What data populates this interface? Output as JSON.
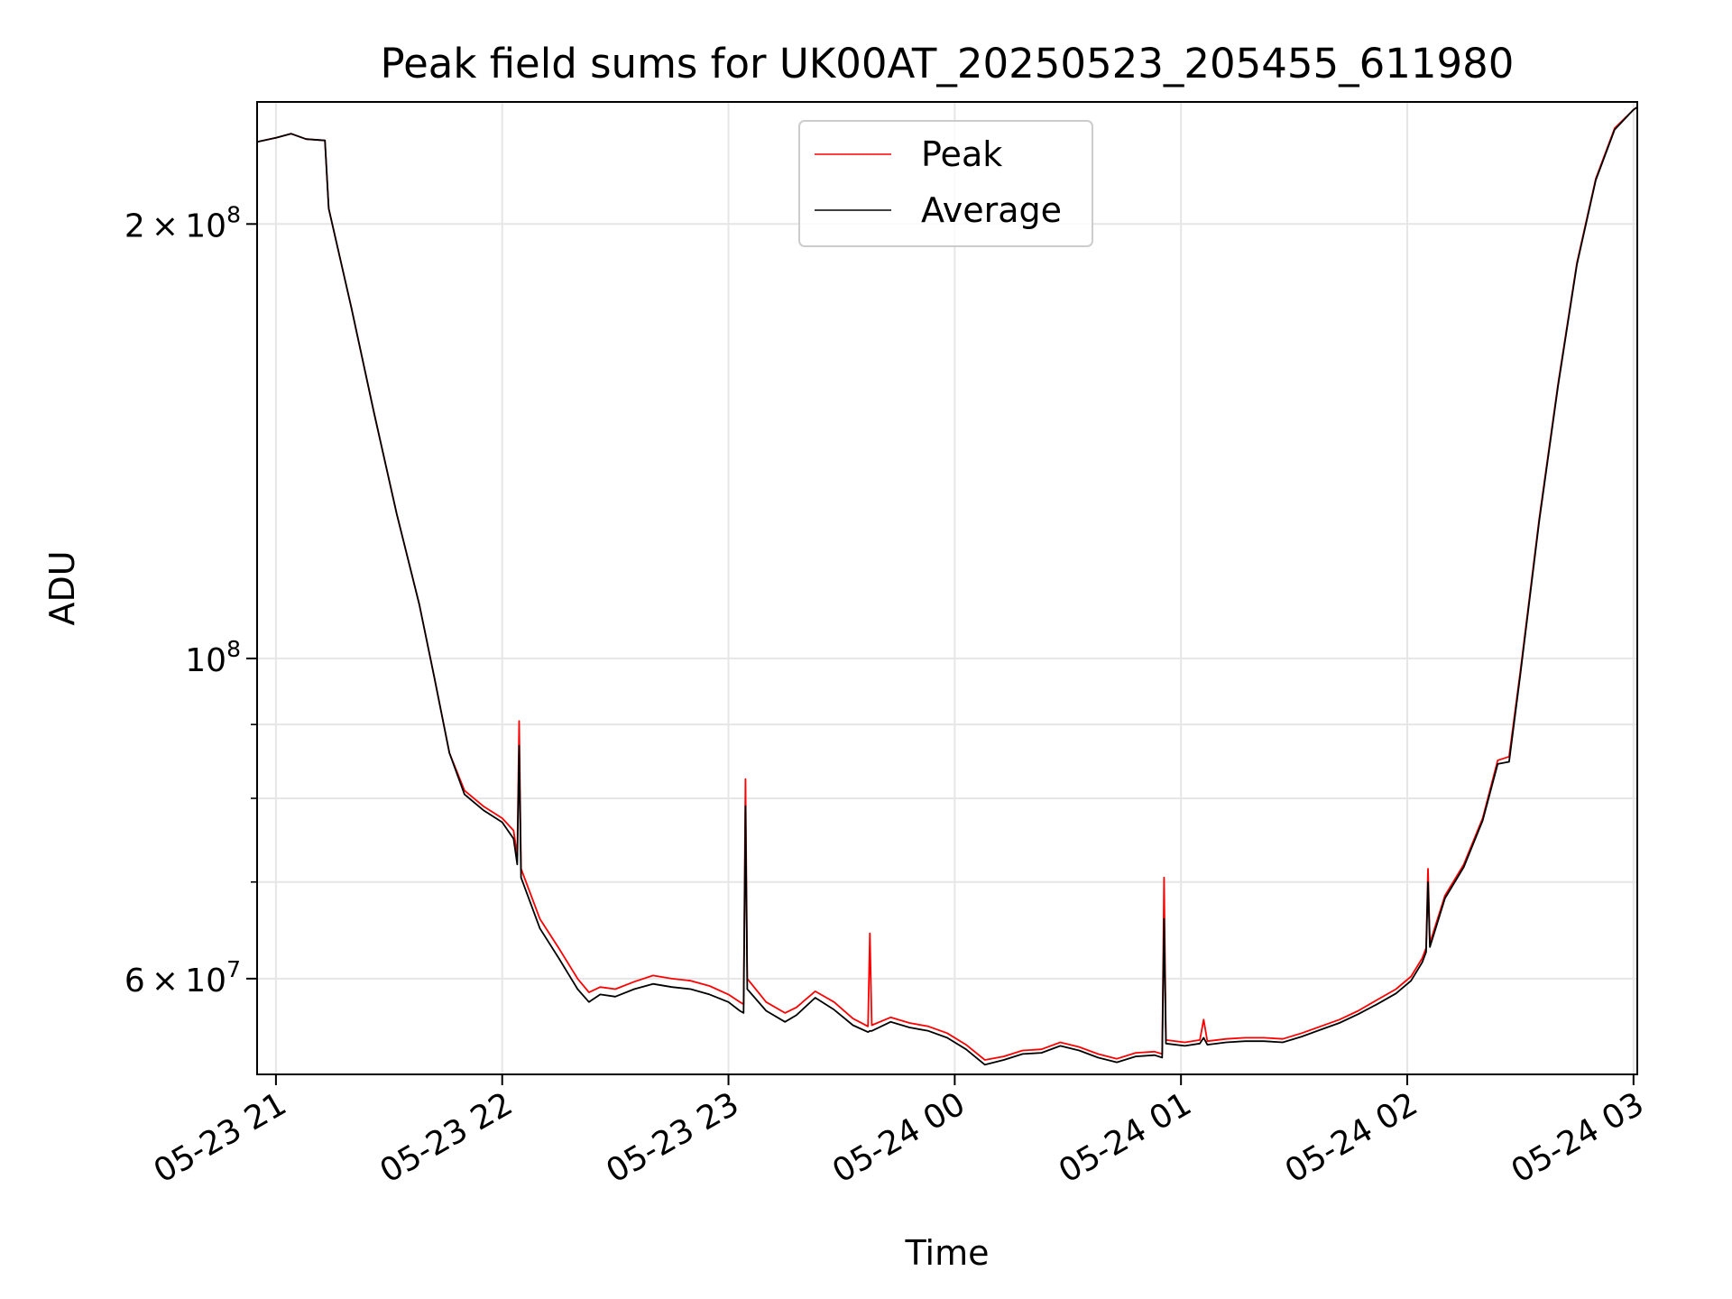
{
  "chart_data": {
    "type": "line",
    "title": "Peak field sums for UK00AT_20250523_205455_611980",
    "xlabel": "Time",
    "ylabel": "ADU",
    "y_scale": "log",
    "ylim": [
      51500000,
      243000000
    ],
    "xlim": [
      "2025-05-23 20:55",
      "2025-05-24 03:01"
    ],
    "x_ticks": [
      {
        "t": "2025-05-23 21:00",
        "label": "05-23 21"
      },
      {
        "t": "2025-05-23 22:00",
        "label": "05-23 22"
      },
      {
        "t": "2025-05-23 23:00",
        "label": "05-23 23"
      },
      {
        "t": "2025-05-24 00:00",
        "label": "05-24 00"
      },
      {
        "t": "2025-05-24 01:00",
        "label": "05-24 01"
      },
      {
        "t": "2025-05-24 02:00",
        "label": "05-24 02"
      },
      {
        "t": "2025-05-24 03:00",
        "label": "05-24 03"
      }
    ],
    "y_major_ticks": [
      {
        "v": 60000000,
        "mant": "6",
        "exp": "7"
      },
      {
        "v": 100000000,
        "mant": "",
        "exp": "8"
      },
      {
        "v": 200000000,
        "mant": "2",
        "exp": "8"
      }
    ],
    "y_minor_ticks": [
      70000000,
      80000000,
      90000000
    ],
    "grid": true,
    "legend": {
      "placement": "top-center"
    },
    "series": [
      {
        "name": "Peak",
        "color": "#ff0000",
        "points": [
          [
            "2025-05-23 20:55",
            228000000
          ],
          [
            "2025-05-23 21:00",
            229500000
          ],
          [
            "2025-05-23 21:04",
            231000000
          ],
          [
            "2025-05-23 21:08",
            229000000
          ],
          [
            "2025-05-23 21:13",
            228500000
          ],
          [
            "2025-05-23 21:14",
            205000000
          ],
          [
            "2025-05-23 21:20",
            175000000
          ],
          [
            "2025-05-23 21:26",
            148000000
          ],
          [
            "2025-05-23 21:32",
            126000000
          ],
          [
            "2025-05-23 21:38",
            109000000
          ],
          [
            "2025-05-23 21:42",
            97000000
          ],
          [
            "2025-05-23 21:46",
            86000000
          ],
          [
            "2025-05-23 21:50",
            81000000
          ],
          [
            "2025-05-23 21:55",
            79000000
          ],
          [
            "2025-05-23 22:00",
            77500000
          ],
          [
            "2025-05-23 22:03",
            76000000
          ],
          [
            "2025-05-23 22:04",
            73000000
          ],
          [
            "2025-05-23 22:04:30",
            90500000
          ],
          [
            "2025-05-23 22:05",
            71500000
          ],
          [
            "2025-05-23 22:10",
            66000000
          ],
          [
            "2025-05-23 22:15",
            63000000
          ],
          [
            "2025-05-23 22:20",
            60000000
          ],
          [
            "2025-05-23 22:23",
            58700000
          ],
          [
            "2025-05-23 22:26",
            59200000
          ],
          [
            "2025-05-23 22:30",
            59000000
          ],
          [
            "2025-05-23 22:35",
            59700000
          ],
          [
            "2025-05-23 22:40",
            60300000
          ],
          [
            "2025-05-23 22:45",
            60000000
          ],
          [
            "2025-05-23 22:50",
            59800000
          ],
          [
            "2025-05-23 22:55",
            59300000
          ],
          [
            "2025-05-23 23:00",
            58500000
          ],
          [
            "2025-05-23 23:03",
            57800000
          ],
          [
            "2025-05-23 23:04",
            57600000
          ],
          [
            "2025-05-23 23:04:30",
            82500000
          ],
          [
            "2025-05-23 23:05",
            60000000
          ],
          [
            "2025-05-23 23:10",
            57800000
          ],
          [
            "2025-05-23 23:15",
            56800000
          ],
          [
            "2025-05-23 23:18",
            57300000
          ],
          [
            "2025-05-23 23:23",
            58800000
          ],
          [
            "2025-05-23 23:28",
            57800000
          ],
          [
            "2025-05-23 23:33",
            56300000
          ],
          [
            "2025-05-23 23:37",
            55600000
          ],
          [
            "2025-05-23 23:37:30",
            64500000
          ],
          [
            "2025-05-23 23:38",
            55700000
          ],
          [
            "2025-05-23 23:43",
            56400000
          ],
          [
            "2025-05-23 23:48",
            55900000
          ],
          [
            "2025-05-23 23:53",
            55600000
          ],
          [
            "2025-05-23 23:58",
            55000000
          ],
          [
            "2025-05-24 00:03",
            54000000
          ],
          [
            "2025-05-24 00:08",
            52700000
          ],
          [
            "2025-05-24 00:13",
            53000000
          ],
          [
            "2025-05-24 00:18",
            53500000
          ],
          [
            "2025-05-24 00:23",
            53600000
          ],
          [
            "2025-05-24 00:28",
            54200000
          ],
          [
            "2025-05-24 00:33",
            53800000
          ],
          [
            "2025-05-24 00:38",
            53200000
          ],
          [
            "2025-05-24 00:43",
            52800000
          ],
          [
            "2025-05-24 00:48",
            53300000
          ],
          [
            "2025-05-24 00:53",
            53400000
          ],
          [
            "2025-05-24 00:55",
            53200000
          ],
          [
            "2025-05-24 00:55:30",
            70500000
          ],
          [
            "2025-05-24 00:56",
            54400000
          ],
          [
            "2025-05-24 01:01",
            54200000
          ],
          [
            "2025-05-24 01:05",
            54400000
          ],
          [
            "2025-05-24 01:06",
            56200000
          ],
          [
            "2025-05-24 01:07",
            54300000
          ],
          [
            "2025-05-24 01:12",
            54500000
          ],
          [
            "2025-05-24 01:17",
            54600000
          ],
          [
            "2025-05-24 01:22",
            54600000
          ],
          [
            "2025-05-24 01:27",
            54500000
          ],
          [
            "2025-05-24 01:32",
            55000000
          ],
          [
            "2025-05-24 01:37",
            55600000
          ],
          [
            "2025-05-24 01:42",
            56200000
          ],
          [
            "2025-05-24 01:47",
            57000000
          ],
          [
            "2025-05-24 01:52",
            58000000
          ],
          [
            "2025-05-24 01:57",
            59000000
          ],
          [
            "2025-05-24 02:01",
            60200000
          ],
          [
            "2025-05-24 02:04",
            62000000
          ],
          [
            "2025-05-24 02:05",
            63000000
          ],
          [
            "2025-05-24 02:05:30",
            71500000
          ],
          [
            "2025-05-24 02:06",
            63500000
          ],
          [
            "2025-05-24 02:10",
            68500000
          ],
          [
            "2025-05-24 02:15",
            72000000
          ],
          [
            "2025-05-24 02:20",
            77500000
          ],
          [
            "2025-05-24 02:24",
            85000000
          ],
          [
            "2025-05-24 02:27",
            85500000
          ],
          [
            "2025-05-24 02:30",
            98000000
          ],
          [
            "2025-05-24 02:35",
            125000000
          ],
          [
            "2025-05-24 02:40",
            155000000
          ],
          [
            "2025-05-24 02:45",
            188000000
          ],
          [
            "2025-05-24 02:50",
            215000000
          ],
          [
            "2025-05-24 02:55",
            233000000
          ],
          [
            "2025-05-24 03:00",
            240000000
          ],
          [
            "2025-05-24 03:01",
            241000000
          ]
        ]
      },
      {
        "name": "Average",
        "color": "#000000",
        "points": [
          [
            "2025-05-23 20:55",
            228000000
          ],
          [
            "2025-05-23 21:00",
            229500000
          ],
          [
            "2025-05-23 21:04",
            231000000
          ],
          [
            "2025-05-23 21:08",
            229000000
          ],
          [
            "2025-05-23 21:13",
            228500000
          ],
          [
            "2025-05-23 21:14",
            205000000
          ],
          [
            "2025-05-23 21:20",
            175000000
          ],
          [
            "2025-05-23 21:26",
            148000000
          ],
          [
            "2025-05-23 21:32",
            126000000
          ],
          [
            "2025-05-23 21:38",
            109000000
          ],
          [
            "2025-05-23 21:42",
            97000000
          ],
          [
            "2025-05-23 21:46",
            86000000
          ],
          [
            "2025-05-23 21:50",
            80500000
          ],
          [
            "2025-05-23 21:55",
            78500000
          ],
          [
            "2025-05-23 22:00",
            77000000
          ],
          [
            "2025-05-23 22:03",
            75000000
          ],
          [
            "2025-05-23 22:04",
            72000000
          ],
          [
            "2025-05-23 22:04:30",
            87000000
          ],
          [
            "2025-05-23 22:05",
            70500000
          ],
          [
            "2025-05-23 22:10",
            65000000
          ],
          [
            "2025-05-23 22:15",
            62000000
          ],
          [
            "2025-05-23 22:20",
            59000000
          ],
          [
            "2025-05-23 22:23",
            57800000
          ],
          [
            "2025-05-23 22:26",
            58500000
          ],
          [
            "2025-05-23 22:30",
            58300000
          ],
          [
            "2025-05-23 22:35",
            59000000
          ],
          [
            "2025-05-23 22:40",
            59500000
          ],
          [
            "2025-05-23 22:45",
            59200000
          ],
          [
            "2025-05-23 22:50",
            59000000
          ],
          [
            "2025-05-23 22:55",
            58500000
          ],
          [
            "2025-05-23 23:00",
            57800000
          ],
          [
            "2025-05-23 23:03",
            57000000
          ],
          [
            "2025-05-23 23:04",
            56800000
          ],
          [
            "2025-05-23 23:04:30",
            79000000
          ],
          [
            "2025-05-23 23:05",
            59000000
          ],
          [
            "2025-05-23 23:10",
            57000000
          ],
          [
            "2025-05-23 23:15",
            56000000
          ],
          [
            "2025-05-23 23:18",
            56600000
          ],
          [
            "2025-05-23 23:23",
            58200000
          ],
          [
            "2025-05-23 23:28",
            57100000
          ],
          [
            "2025-05-23 23:33",
            55700000
          ],
          [
            "2025-05-23 23:37",
            55100000
          ],
          [
            "2025-05-23 23:37:30",
            55200000
          ],
          [
            "2025-05-23 23:38",
            55200000
          ],
          [
            "2025-05-23 23:43",
            56000000
          ],
          [
            "2025-05-23 23:48",
            55500000
          ],
          [
            "2025-05-23 23:53",
            55200000
          ],
          [
            "2025-05-23 23:58",
            54600000
          ],
          [
            "2025-05-24 00:03",
            53600000
          ],
          [
            "2025-05-24 00:08",
            52300000
          ],
          [
            "2025-05-24 00:13",
            52700000
          ],
          [
            "2025-05-24 00:18",
            53200000
          ],
          [
            "2025-05-24 00:23",
            53300000
          ],
          [
            "2025-05-24 00:28",
            53900000
          ],
          [
            "2025-05-24 00:33",
            53500000
          ],
          [
            "2025-05-24 00:38",
            52900000
          ],
          [
            "2025-05-24 00:43",
            52500000
          ],
          [
            "2025-05-24 00:48",
            53000000
          ],
          [
            "2025-05-24 00:53",
            53100000
          ],
          [
            "2025-05-24 00:55",
            52900000
          ],
          [
            "2025-05-24 00:55:30",
            66000000
          ],
          [
            "2025-05-24 00:56",
            54100000
          ],
          [
            "2025-05-24 01:01",
            53900000
          ],
          [
            "2025-05-24 01:05",
            54100000
          ],
          [
            "2025-05-24 01:06",
            54600000
          ],
          [
            "2025-05-24 01:07",
            54000000
          ],
          [
            "2025-05-24 01:12",
            54200000
          ],
          [
            "2025-05-24 01:17",
            54300000
          ],
          [
            "2025-05-24 01:22",
            54300000
          ],
          [
            "2025-05-24 01:27",
            54200000
          ],
          [
            "2025-05-24 01:32",
            54700000
          ],
          [
            "2025-05-24 01:37",
            55300000
          ],
          [
            "2025-05-24 01:42",
            55900000
          ],
          [
            "2025-05-24 01:47",
            56700000
          ],
          [
            "2025-05-24 01:52",
            57600000
          ],
          [
            "2025-05-24 01:57",
            58600000
          ],
          [
            "2025-05-24 02:01",
            59800000
          ],
          [
            "2025-05-24 02:04",
            61600000
          ],
          [
            "2025-05-24 02:05",
            62600000
          ],
          [
            "2025-05-24 02:05:30",
            70000000
          ],
          [
            "2025-05-24 02:06",
            63100000
          ],
          [
            "2025-05-24 02:10",
            68200000
          ],
          [
            "2025-05-24 02:15",
            71700000
          ],
          [
            "2025-05-24 02:20",
            77200000
          ],
          [
            "2025-05-24 02:24",
            84500000
          ],
          [
            "2025-05-24 02:27",
            84800000
          ],
          [
            "2025-05-24 02:30",
            97500000
          ],
          [
            "2025-05-24 02:35",
            124500000
          ],
          [
            "2025-05-24 02:40",
            154500000
          ],
          [
            "2025-05-24 02:45",
            187500000
          ],
          [
            "2025-05-24 02:50",
            214500000
          ],
          [
            "2025-05-24 02:55",
            232500000
          ],
          [
            "2025-05-24 03:00",
            240000000
          ],
          [
            "2025-05-24 03:01",
            241000000
          ]
        ]
      }
    ]
  }
}
